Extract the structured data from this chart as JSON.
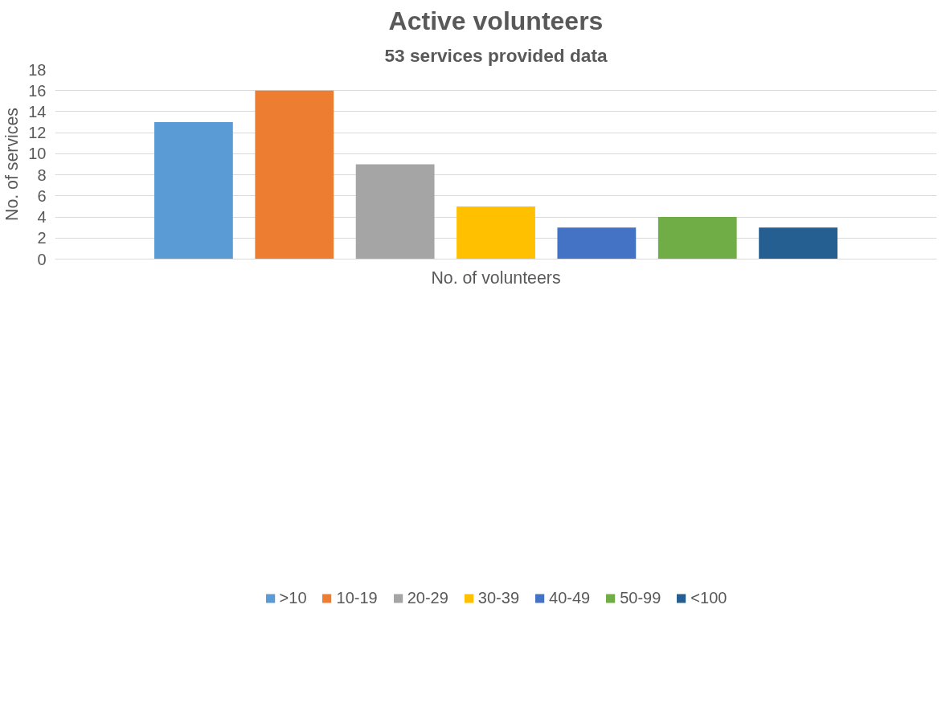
{
  "chart_data": {
    "type": "bar",
    "title": "Active volunteers",
    "subtitle": "53 services provided data",
    "xlabel": "No. of volunteers",
    "ylabel": "No. of services",
    "categories": [
      null
    ],
    "series": [
      {
        "name": ">10",
        "color": "#5b9bd5",
        "values": [
          13
        ]
      },
      {
        "name": "10-19",
        "color": "#ed7d31",
        "values": [
          16
        ]
      },
      {
        "name": "20-29",
        "color": "#a5a5a5",
        "values": [
          9
        ]
      },
      {
        "name": "30-39",
        "color": "#ffc000",
        "values": [
          5
        ]
      },
      {
        "name": "40-49",
        "color": "#4472c4",
        "values": [
          3
        ]
      },
      {
        "name": "50-99",
        "color": "#70ad47",
        "values": [
          4
        ]
      },
      {
        "name": "<100",
        "color": "#255e91",
        "values": [
          3
        ]
      }
    ],
    "ylim": [
      0,
      18
    ],
    "yticks": [
      0,
      2,
      4,
      6,
      8,
      10,
      12,
      14,
      16,
      18
    ],
    "grid": "y",
    "legend": "bottom"
  }
}
